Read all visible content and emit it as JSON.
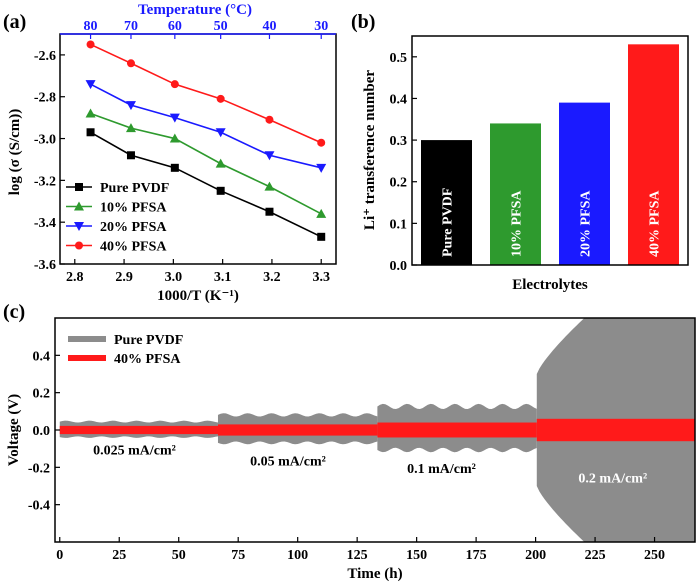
{
  "panels": {
    "a": "(a)",
    "b": "(b)",
    "c": "(c)"
  },
  "colors": {
    "pure": "#000000",
    "p10": "#2e9a2e",
    "p20": "#1a1aff",
    "p40": "#ff1a1a",
    "gray": "#8c8c8c",
    "top_axis": "#1a1aff"
  },
  "chart_data": [
    {
      "id": "a",
      "type": "line",
      "xlabel": "1000/T (K⁻¹)",
      "ylabel": "log (σ (S/cm))",
      "top_xlabel": "Temperature (°C)",
      "xlim": [
        2.77,
        3.33
      ],
      "ylim": [
        -3.6,
        -2.5
      ],
      "x_ticks": [
        "2.8",
        "2.9",
        "3.0",
        "3.1",
        "3.2",
        "3.3"
      ],
      "y_ticks": [
        "-2.6",
        "-2.8",
        "-3.0",
        "-3.2",
        "-3.4",
        "-3.6"
      ],
      "top_ticks": [
        {
          "label": "80",
          "at": 2.832
        },
        {
          "label": "70",
          "at": 2.914
        },
        {
          "label": "60",
          "at": 3.003
        },
        {
          "label": "50",
          "at": 3.096
        },
        {
          "label": "40",
          "at": 3.195
        },
        {
          "label": "30",
          "at": 3.3
        }
      ],
      "x": [
        2.832,
        2.914,
        3.003,
        3.096,
        3.195,
        3.3
      ],
      "series": [
        {
          "name": "Pure PVDF",
          "color_key": "pure",
          "marker": "square",
          "values": [
            -2.97,
            -3.08,
            -3.14,
            -3.25,
            -3.35,
            -3.47
          ]
        },
        {
          "name": "10% PFSA",
          "color_key": "p10",
          "marker": "triangle-up",
          "values": [
            -2.88,
            -2.95,
            -3.0,
            -3.12,
            -3.23,
            -3.36
          ]
        },
        {
          "name": "20% PFSA",
          "color_key": "p20",
          "marker": "triangle-down",
          "values": [
            -2.74,
            -2.84,
            -2.9,
            -2.97,
            -3.08,
            -3.14
          ]
        },
        {
          "name": "40% PFSA",
          "color_key": "p40",
          "marker": "circle",
          "values": [
            -2.55,
            -2.64,
            -2.74,
            -2.81,
            -2.91,
            -3.02
          ]
        }
      ]
    },
    {
      "id": "b",
      "type": "bar",
      "xlabel": "Electrolytes",
      "ylabel": "Li⁺ transference number",
      "ylim": [
        0,
        0.55
      ],
      "y_ticks": [
        "0.0",
        "0.1",
        "0.2",
        "0.3",
        "0.4",
        "0.5"
      ],
      "categories": [
        "Pure PVDF",
        "10% PFSA",
        "20% PFSA",
        "40% PFSA"
      ],
      "values": [
        0.3,
        0.34,
        0.39,
        0.53
      ],
      "color_keys": [
        "pure",
        "p10",
        "p20",
        "p40"
      ]
    },
    {
      "id": "c",
      "type": "area",
      "xlabel": "Time (h)",
      "ylabel": "Voltage (V)",
      "xlim": [
        -2,
        267
      ],
      "ylim": [
        -0.6,
        0.6
      ],
      "x_ticks": [
        "0",
        "25",
        "50",
        "75",
        "100",
        "125",
        "150",
        "175",
        "200",
        "225",
        "250"
      ],
      "y_ticks": [
        "0.4",
        "0.2",
        "0.0",
        "-0.2",
        "-0.4"
      ],
      "series": [
        {
          "name": "Pure PVDF",
          "color_key": "gray"
        },
        {
          "name": "40% PFSA",
          "color_key": "p40"
        }
      ],
      "stages": [
        {
          "label": "0.025 mA/cm²",
          "t0": 0,
          "t1": 66.5,
          "gray_amp": 0.05,
          "red_amp": 0.022
        },
        {
          "label": "0.05 mA/cm²",
          "t0": 66.5,
          "t1": 133.5,
          "gray_amp": 0.09,
          "red_amp": 0.03
        },
        {
          "label": "0.1 mA/cm²",
          "t0": 133.5,
          "t1": 200.5,
          "gray_amp": 0.14,
          "red_amp": 0.04
        },
        {
          "label": "0.2 mA/cm²",
          "t0": 200.5,
          "t1": 267,
          "gray_amp": 0.6,
          "red_amp": 0.06
        }
      ]
    }
  ]
}
